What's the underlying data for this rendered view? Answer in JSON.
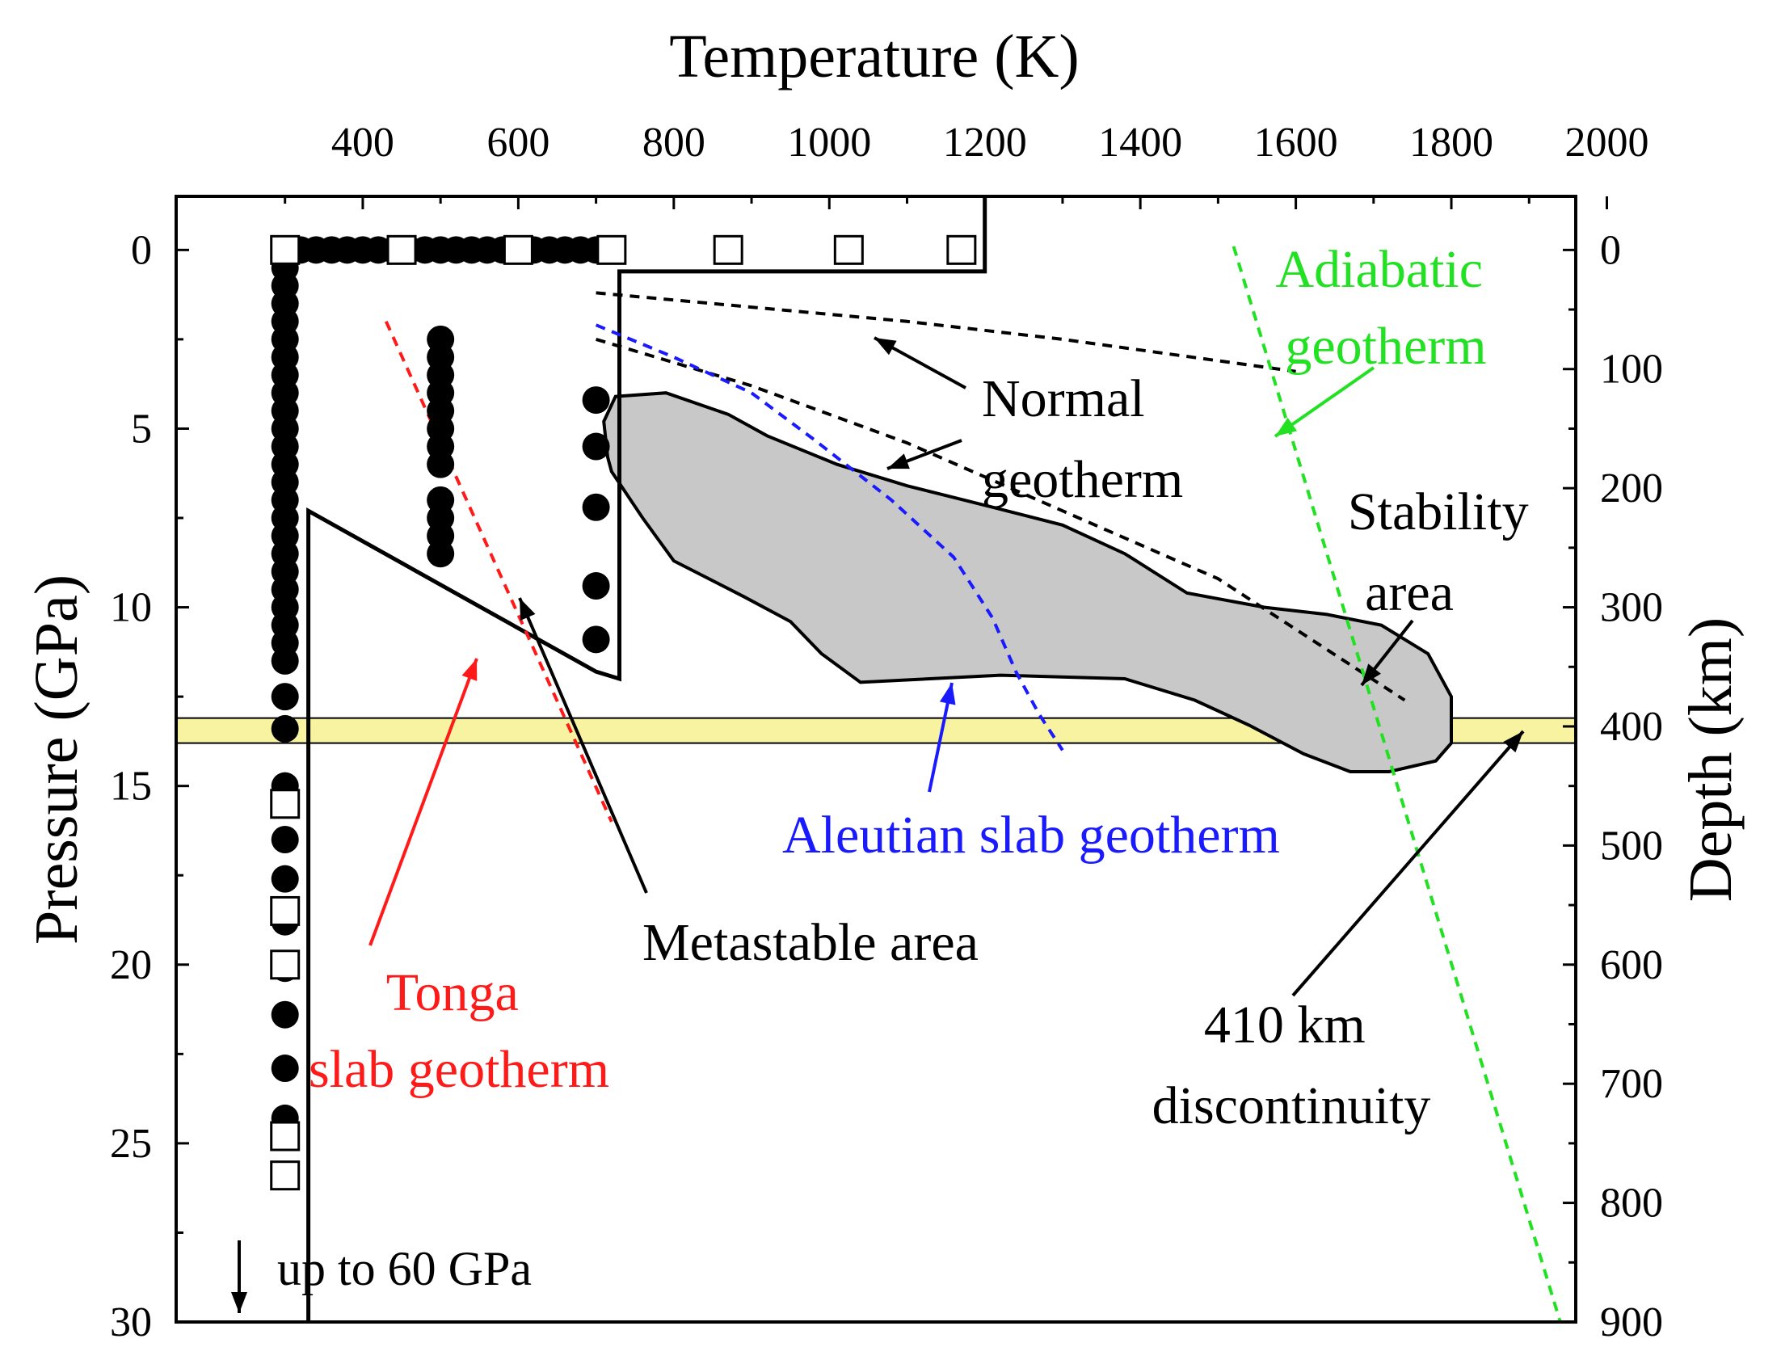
{
  "chart_data": {
    "type": "scatter",
    "x_axis": {
      "label": "Temperature (K)",
      "position": "top",
      "range": [
        160,
        1960
      ],
      "ticks": [
        400,
        600,
        800,
        1000,
        1200,
        1400,
        1600,
        1800,
        2000
      ]
    },
    "y_axis": {
      "label": "Pressure (GPa)",
      "position": "left",
      "range": [
        30,
        -1.5
      ],
      "inverted": true,
      "ticks": [
        0,
        5,
        10,
        15,
        20,
        25,
        30
      ]
    },
    "y2_axis": {
      "label": "Depth (km)",
      "position": "right",
      "ticks": [
        0,
        100,
        200,
        300,
        400,
        500,
        600,
        700,
        800,
        900
      ]
    },
    "grid": false,
    "series": [
      {
        "kind": "filled-circles",
        "color": "#000000",
        "points": [
          [
            300,
            0
          ],
          [
            320,
            0
          ],
          [
            340,
            0
          ],
          [
            360,
            0
          ],
          [
            380,
            0
          ],
          [
            400,
            0
          ],
          [
            420,
            0
          ],
          [
            440,
            0
          ],
          [
            460,
            0
          ],
          [
            480,
            0
          ],
          [
            500,
            0
          ],
          [
            520,
            0
          ],
          [
            540,
            0
          ],
          [
            560,
            0
          ],
          [
            580,
            0
          ],
          [
            600,
            0
          ],
          [
            620,
            0
          ],
          [
            640,
            0
          ],
          [
            660,
            0
          ],
          [
            680,
            0
          ],
          [
            700,
            0
          ],
          [
            720,
            0
          ],
          [
            300,
            0.5
          ],
          [
            300,
            1.0
          ],
          [
            300,
            1.5
          ],
          [
            300,
            2.0
          ],
          [
            300,
            2.5
          ],
          [
            300,
            3.0
          ],
          [
            300,
            3.5
          ],
          [
            300,
            4.0
          ],
          [
            300,
            4.5
          ],
          [
            300,
            5.0
          ],
          [
            300,
            5.5
          ],
          [
            300,
            6.0
          ],
          [
            300,
            6.5
          ],
          [
            300,
            7.0
          ],
          [
            300,
            7.5
          ],
          [
            300,
            8.0
          ],
          [
            300,
            8.5
          ],
          [
            300,
            9.0
          ],
          [
            300,
            9.5
          ],
          [
            300,
            10.0
          ],
          [
            300,
            10.5
          ],
          [
            300,
            11.0
          ],
          [
            300,
            11.5
          ],
          [
            500,
            2.5
          ],
          [
            500,
            3.0
          ],
          [
            500,
            3.5
          ],
          [
            500,
            4.0
          ],
          [
            500,
            4.5
          ],
          [
            500,
            5.0
          ],
          [
            500,
            5.5
          ],
          [
            500,
            6.0
          ],
          [
            500,
            7.0
          ],
          [
            500,
            7.5
          ],
          [
            500,
            8.0
          ],
          [
            500,
            8.5
          ],
          [
            700,
            4.2
          ],
          [
            700,
            5.5
          ],
          [
            700,
            7.2
          ],
          [
            700,
            9.4
          ],
          [
            700,
            10.9
          ],
          [
            300,
            12.5
          ],
          [
            300,
            13.4
          ],
          [
            300,
            15.0
          ],
          [
            300,
            16.5
          ],
          [
            300,
            17.6
          ],
          [
            300,
            18.8
          ],
          [
            300,
            20.1
          ],
          [
            300,
            21.4
          ],
          [
            300,
            22.9
          ],
          [
            300,
            24.3
          ]
        ]
      },
      {
        "kind": "open-squares",
        "color": "#000000",
        "points": [
          [
            300,
            0
          ],
          [
            450,
            0
          ],
          [
            600,
            0
          ],
          [
            720,
            0
          ],
          [
            870,
            0
          ],
          [
            1025,
            0
          ],
          [
            1170,
            0
          ],
          [
            300,
            15.5
          ],
          [
            300,
            18.5
          ],
          [
            300,
            20.0
          ],
          [
            300,
            24.8
          ],
          [
            300,
            25.9
          ]
        ]
      },
      {
        "name": "Stability area",
        "kind": "region",
        "fill": "#c8c8c8",
        "outline": [
          [
            715,
            5.8
          ],
          [
            710,
            4.8
          ],
          [
            725,
            4.1
          ],
          [
            790,
            4.0
          ],
          [
            870,
            4.6
          ],
          [
            920,
            5.2
          ],
          [
            1010,
            6.0
          ],
          [
            1100,
            6.6
          ],
          [
            1210,
            7.2
          ],
          [
            1300,
            7.7
          ],
          [
            1380,
            8.5
          ],
          [
            1460,
            9.6
          ],
          [
            1560,
            10.0
          ],
          [
            1640,
            10.2
          ],
          [
            1710,
            10.5
          ],
          [
            1770,
            11.3
          ],
          [
            1800,
            12.5
          ],
          [
            1800,
            13.8
          ],
          [
            1780,
            14.3
          ],
          [
            1720,
            14.6
          ],
          [
            1670,
            14.6
          ],
          [
            1610,
            14.1
          ],
          [
            1540,
            13.3
          ],
          [
            1470,
            12.6
          ],
          [
            1380,
            12.0
          ],
          [
            1220,
            11.9
          ],
          [
            1040,
            12.1
          ],
          [
            990,
            11.3
          ],
          [
            950,
            10.4
          ],
          [
            890,
            9.7
          ],
          [
            800,
            8.7
          ],
          [
            760,
            7.5
          ],
          [
            720,
            6.2
          ]
        ]
      },
      {
        "name": "Metastable area",
        "kind": "boundary",
        "color": "#000000",
        "outline": [
          [
            330,
            31
          ],
          [
            330,
            7.3
          ],
          [
            700,
            11.8
          ],
          [
            730,
            12.0
          ],
          [
            730,
            0.6
          ],
          [
            1200,
            0.6
          ],
          [
            1200,
            -1.5
          ]
        ]
      },
      {
        "name": "Normal geotherm",
        "kind": "dashed-line",
        "color": "#000000",
        "curves": [
          [
            [
              700,
              1.2
            ],
            [
              900,
              1.6
            ],
            [
              1100,
              2.0
            ],
            [
              1300,
              2.5
            ],
            [
              1600,
              3.4
            ]
          ],
          [
            [
              700,
              2.5
            ],
            [
              900,
              3.8
            ],
            [
              1100,
              5.4
            ],
            [
              1300,
              7.3
            ],
            [
              1500,
              9.2
            ],
            [
              1740,
              12.6
            ]
          ]
        ]
      },
      {
        "name": "Adiabatic geotherm",
        "kind": "dashed-line",
        "color": "#22e022",
        "points": [
          [
            1520,
            -0.1
          ],
          [
            1940,
            30
          ]
        ]
      },
      {
        "name": "Tonga slab geotherm",
        "kind": "dashed-line",
        "color": "#ff1a1a",
        "points": [
          [
            430,
            2.0
          ],
          [
            720,
            16.0
          ]
        ]
      },
      {
        "name": "Aleutian slab geotherm",
        "kind": "dashed-line",
        "color": "#1a1aff",
        "points": [
          [
            700,
            2.1
          ],
          [
            800,
            3.0
          ],
          [
            900,
            4.0
          ],
          [
            980,
            5.3
          ],
          [
            1080,
            7.0
          ],
          [
            1160,
            8.6
          ],
          [
            1210,
            10.3
          ],
          [
            1240,
            11.8
          ],
          [
            1270,
            13.0
          ],
          [
            1300,
            14.0
          ]
        ]
      },
      {
        "name": "410 km discontinuity",
        "kind": "band",
        "fill": "#f7f3a0",
        "y": [
          13.1,
          13.8
        ]
      }
    ],
    "annotations": {
      "normal": "Normal",
      "geotherm": "geotherm",
      "adiabatic_1": "Adiabatic",
      "adiabatic_2": "geotherm",
      "stability_1": "Stability",
      "stability_2": "area",
      "aleutian": "Aleutian slab geotherm",
      "metastable": "Metastable area",
      "tonga_1": "Tonga",
      "tonga_2": "slab geotherm",
      "disc_1": "410 km",
      "disc_2": "discontinuity",
      "upto": "up to 60 GPa"
    },
    "colors": {
      "tonga": "#ff1a1a",
      "aleutian": "#1a1aff",
      "adiabatic": "#22e022",
      "band": "#f7f3a0",
      "stability": "#c8c8c8"
    }
  }
}
